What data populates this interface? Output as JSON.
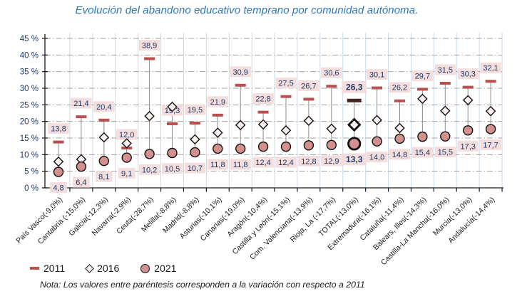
{
  "title": "Evolución del abandono educativo temprano por comunidad autónoma.",
  "note": "Nota: Los valores entre paréntesis corresponden a la variación con respecto a 2011",
  "legend": {
    "items": [
      {
        "label": "2011",
        "marker": "dash"
      },
      {
        "label": "2016",
        "marker": "diamond"
      },
      {
        "label": "2021",
        "marker": "circle"
      }
    ]
  },
  "colors": {
    "title_text": "#2E75B6",
    "axis_text": "#1F3864",
    "value_label_text": "#1F3864",
    "category_text": "#1A1A1A",
    "legend_text": "#1A1A1A",
    "note_text": "#1A1A1A",
    "dash_2011": "#B9504E",
    "dash_2011_total": "#3E2723",
    "diamond_fill": "#F9EFED",
    "circle_fill": "#D2908E",
    "marker_stroke": "#111111",
    "label_bg": "#F3DEDD",
    "grid_vertical": "#C9DAEB",
    "grid_horizontal": "#A3A3A3",
    "axis_line": "#1A1A1A",
    "stem": "#8C8C8C"
  },
  "chart_data": {
    "type": "scatter",
    "subtype": "dumbbell-range-chart",
    "categories": [
      "País Vasco(-9,0%)",
      "Cantabria (-15,0%)",
      "Galicia(-12,3%)",
      "Navarra(-2,9%)",
      "Ceuta(-28,7%)",
      "Melilla(-8,8%)",
      "Madrid(-8,8%)",
      "Asturias(-10,1%)",
      "Canarias(-19,0%)",
      "Aragón(-10,4%)",
      "Castilla y León(-15,1%)",
      "Com. Valenciana(-13,9%)",
      "Rioja, La (-17,7%)",
      "TOTAL(-13,0%)",
      "Extremadura(-16,1%)",
      "Cataluña(-11,4%)",
      "Balears, Illes(-14,3%)",
      "Castilla-La Mancha(-16,0%)",
      "Murcia(-13,0%)",
      "Andalucía(-14,4%)"
    ],
    "series": [
      {
        "name": "2011",
        "marker": "dash",
        "labeled": true,
        "values": [
          13.8,
          21.4,
          20.4,
          12.0,
          38.9,
          19.3,
          19.5,
          21.9,
          30.9,
          22.8,
          27.5,
          26.7,
          30.6,
          26.3,
          30.1,
          26.2,
          29.7,
          31.5,
          30.3,
          32.1
        ]
      },
      {
        "name": "2016",
        "marker": "diamond",
        "labeled": false,
        "values_estimated_from_positions": true,
        "values": [
          7.9,
          8.6,
          15.2,
          13.4,
          21.6,
          24.4,
          14.6,
          16.6,
          18.9,
          19.1,
          17.3,
          20.2,
          17.8,
          19.0,
          20.4,
          18.0,
          26.8,
          23.2,
          26.4,
          23.1
        ]
      },
      {
        "name": "2021",
        "marker": "circle",
        "labeled": true,
        "values": [
          4.8,
          6.4,
          8.1,
          9.1,
          10.2,
          10.5,
          10.7,
          11.8,
          11.8,
          12.4,
          12.4,
          12.8,
          12.9,
          13.3,
          14.0,
          14.8,
          15.4,
          15.5,
          17.3,
          17.7
        ]
      }
    ],
    "highlight_category": "TOTAL(-13,0%)",
    "highlight_index": 13,
    "ylim": [
      0,
      45
    ],
    "ytick_step": 5,
    "ytick_labels": [
      "0 %",
      "5 %",
      "10 %",
      "15 %",
      "20 %",
      "25 %",
      "30 %",
      "35 %",
      "40 %",
      "45 %"
    ],
    "xlabel": "",
    "ylabel": "",
    "grid": true,
    "legend_position": "bottom-left",
    "decimal_separator": ","
  }
}
